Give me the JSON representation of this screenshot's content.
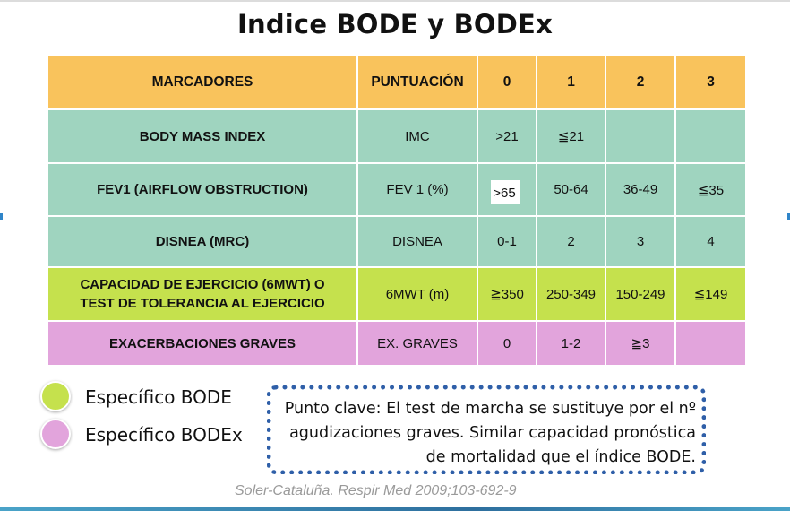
{
  "title": "Indice BODE y BODEx",
  "table": {
    "headers": [
      "MARCADORES",
      "PUNTUACIÓN",
      "0",
      "1",
      "2",
      "3"
    ],
    "rows": [
      {
        "marker": "BODY MASS INDEX",
        "score": "IMC",
        "v0": ">21",
        "v1": "≦21",
        "v2": "",
        "v3": ""
      },
      {
        "marker": "FEV1 (AIRFLOW OBSTRUCTION)",
        "score": "FEV 1 (%)",
        "v0": ">65",
        "v1": "50-64",
        "v2": "36-49",
        "v3": "≦35"
      },
      {
        "marker": "DISNEA (MRC)",
        "score": "DISNEA",
        "v0": "0-1",
        "v1": "2",
        "v2": "3",
        "v3": "4"
      },
      {
        "marker_line1": "CAPACIDAD DE EJERCICIO (6MWT) O",
        "marker_line2": "TEST DE TOLERANCIA AL EJERCICIO",
        "score": "6MWT (m)",
        "v0": "≧350",
        "v1": "250-349",
        "v2": "150-249",
        "v3": "≦149"
      },
      {
        "marker": "EXACERBACIONES GRAVES",
        "score": "EX. GRAVES",
        "v0": "0",
        "v1": "1-2",
        "v2": "≧3",
        "v3": ""
      }
    ]
  },
  "legend": [
    {
      "label": "Específico BODE",
      "color": "#c5e14d"
    },
    {
      "label": "Específico BODEx",
      "color": "#e2a4dc"
    }
  ],
  "key_point": {
    "line1": "Punto clave: El test de marcha se sustituye por el nº",
    "line2": "agudizaciones graves. Similar capacidad pronóstica",
    "line3": "de mortalidad que el índice BODE."
  },
  "citation": "Soler-Cataluña. Respir Med 2009;103-692-9",
  "colors": {
    "header": "#f9c35c",
    "teal": "#9fd4bf",
    "bode_specific": "#c5e14d",
    "bodex_specific": "#e2a4dc",
    "key_border": "#2f5fa8"
  }
}
